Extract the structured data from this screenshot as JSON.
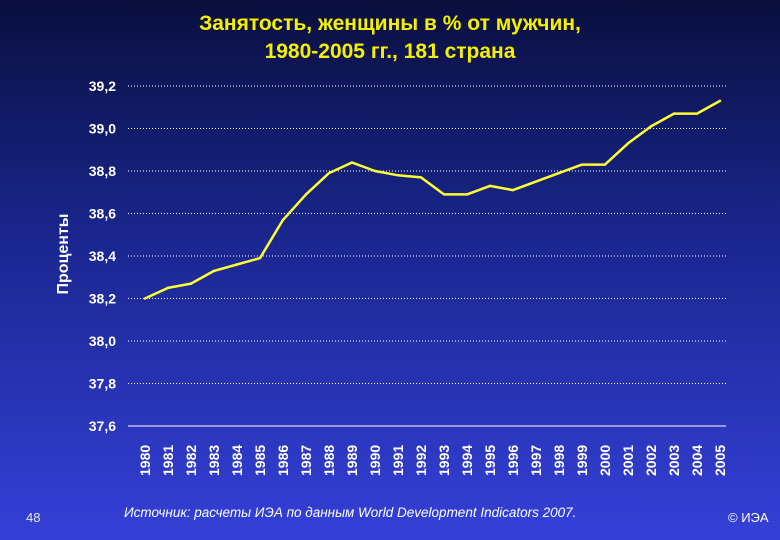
{
  "slide": {
    "title_line1": "Занятость, женщины в % от мужчин,",
    "title_line2": "1980-2005 гг., 181 страна",
    "source_note": "Источник: расчеты ИЭА по данным World Development Indicators 2007.",
    "slide_number": "48",
    "copyright": "© ИЭА"
  },
  "colors": {
    "title": "#f4f000",
    "line": "#ffff33",
    "axis_text": "#ffffff",
    "grid": "#ffffff"
  },
  "chart_data": {
    "type": "line",
    "title": "Занятость, женщины в % от мужчин, 1980-2005 гг., 181 страна",
    "xlabel": "",
    "ylabel": "Проценты",
    "ylim": [
      37.6,
      39.2
    ],
    "grid": true,
    "yticks": [
      "39,2",
      "39,0",
      "38,8",
      "38,6",
      "38,4",
      "38,2",
      "38,0",
      "37,8",
      "37,6"
    ],
    "categories": [
      "1980",
      "1981",
      "1982",
      "1983",
      "1984",
      "1985",
      "1986",
      "1987",
      "1988",
      "1989",
      "1990",
      "1991",
      "1992",
      "1993",
      "1994",
      "1995",
      "1996",
      "1997",
      "1998",
      "1999",
      "2000",
      "2001",
      "2002",
      "2003",
      "2004",
      "2005"
    ],
    "values": [
      38.2,
      38.25,
      38.27,
      38.33,
      38.36,
      38.39,
      38.57,
      38.69,
      38.79,
      38.84,
      38.8,
      38.78,
      38.77,
      38.69,
      38.69,
      38.73,
      38.71,
      38.75,
      38.79,
      38.83,
      38.83,
      38.93,
      39.01,
      39.07,
      39.07,
      39.13
    ]
  }
}
